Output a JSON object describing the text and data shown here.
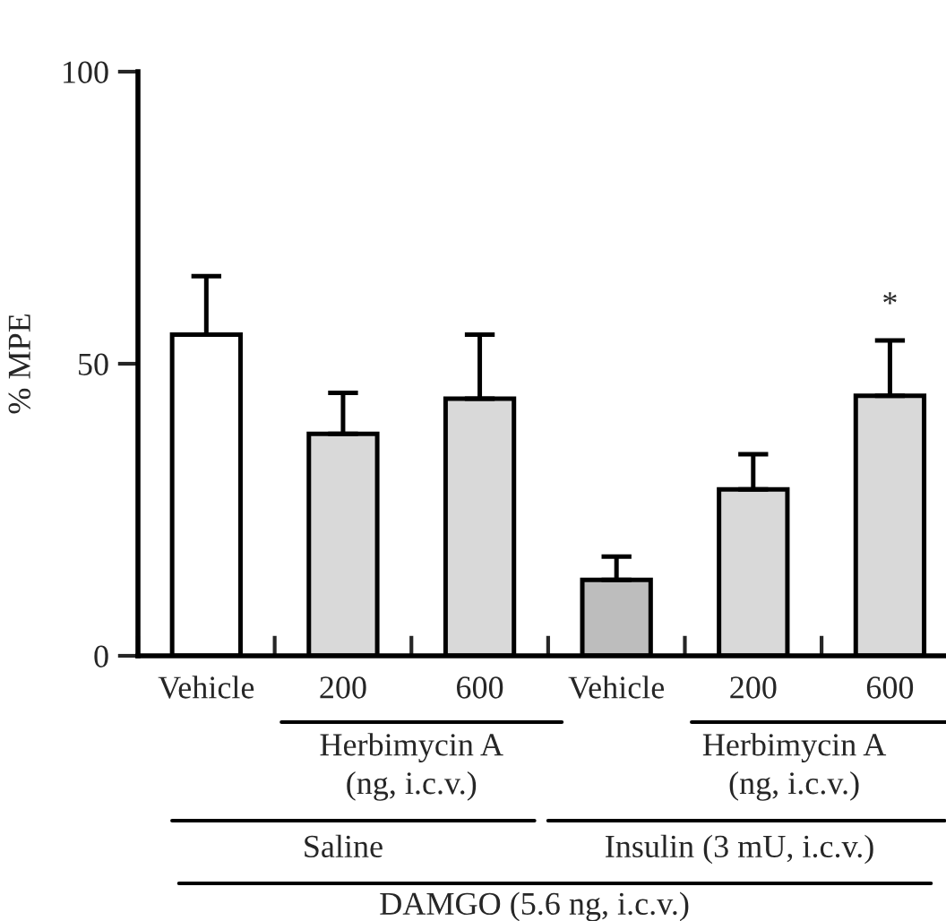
{
  "chart_data": {
    "type": "bar",
    "ylabel": "% MPE",
    "categories": [
      "Vehicle",
      "200",
      "600",
      "Vehicle",
      "200",
      "600"
    ],
    "values": [
      55,
      38,
      44,
      13,
      28.5,
      44.5
    ],
    "errors": [
      10,
      7,
      11,
      4,
      6,
      9.5
    ],
    "colors": [
      "#ffffff",
      "#d9d9d9",
      "#d9d9d9",
      "#bdbdbd",
      "#d9d9d9",
      "#d9d9d9"
    ],
    "ylim": [
      0,
      100
    ],
    "yticks": [
      0,
      50,
      100
    ],
    "annotations": [
      "*",
      "Herbimycin A\n(ng, i.c.v.)",
      "Herbimycin A\n(ng, i.c.v.)",
      "Saline",
      "Insulin (3 mU, i.c.v.)",
      "DAMGO (5.6 ng, i.c.v.)"
    ],
    "grid": false,
    "legend": false
  }
}
